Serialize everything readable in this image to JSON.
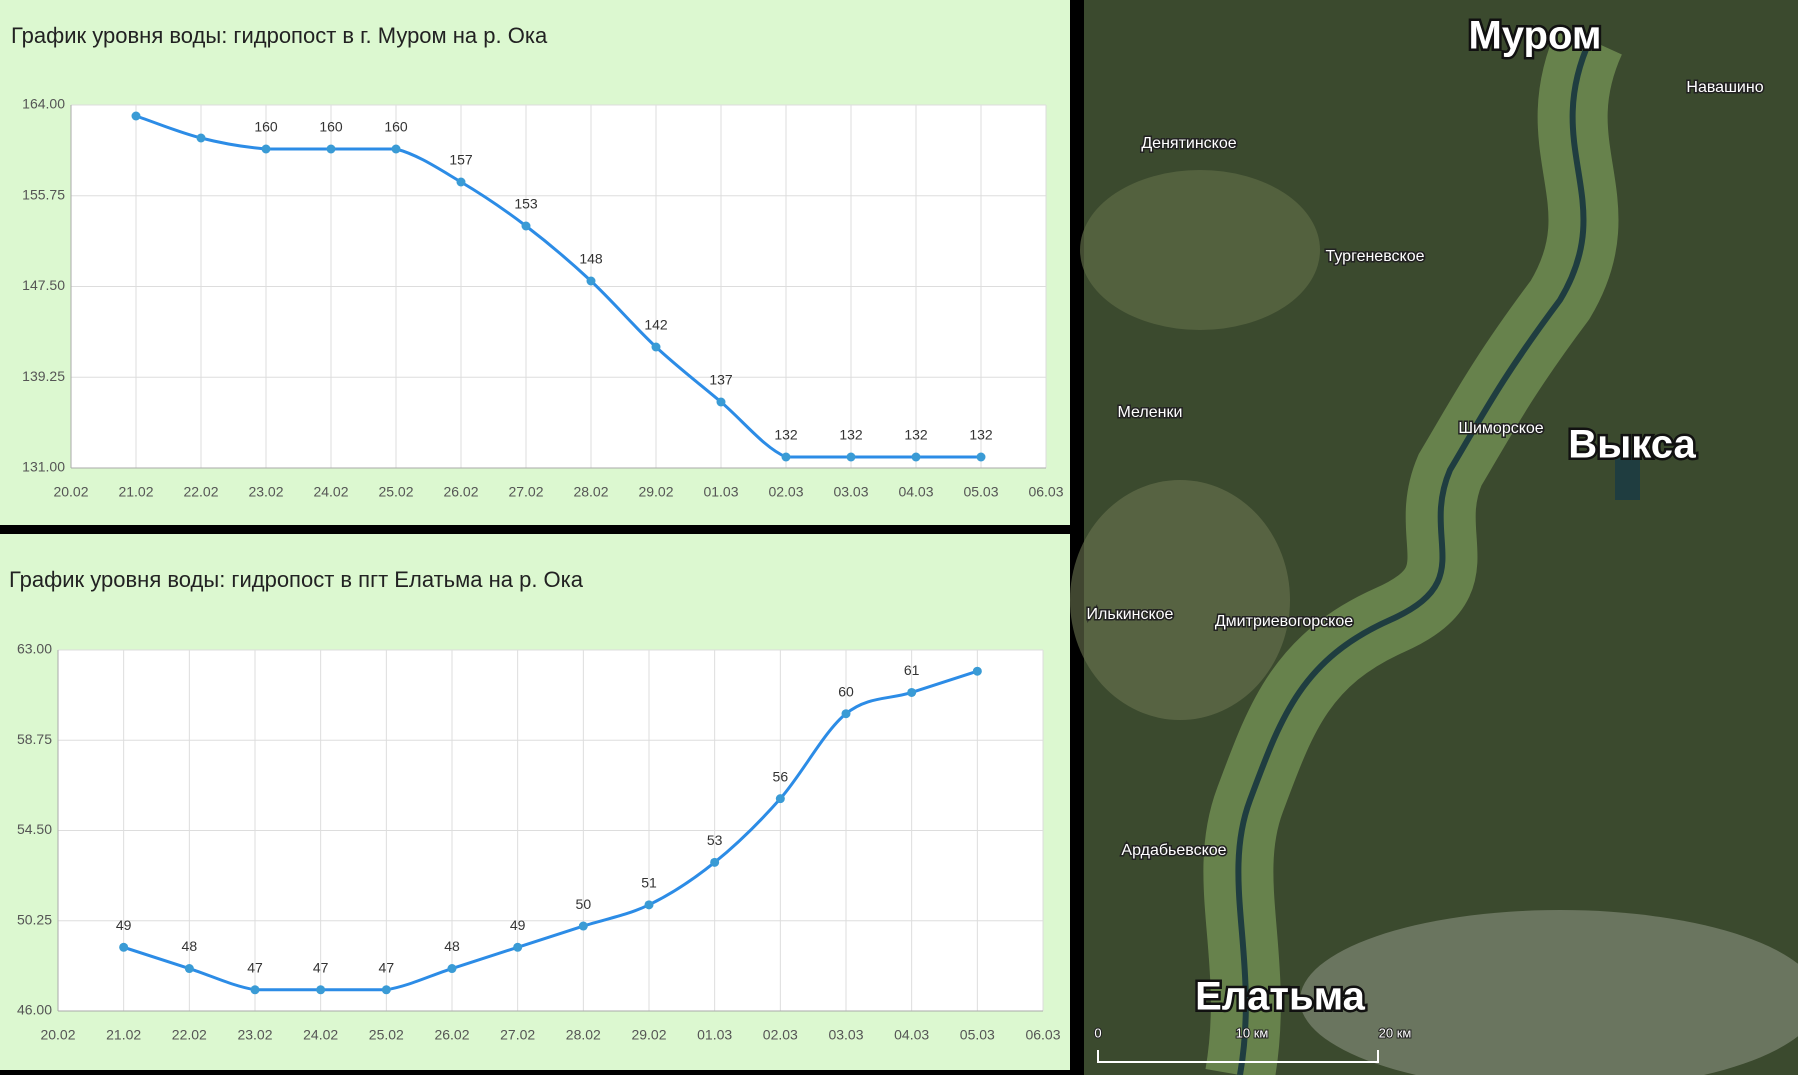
{
  "chart_data": [
    {
      "type": "line",
      "title": "График уровня воды: гидропост в г. Муром на р. Ока",
      "categories": [
        "20.02",
        "21.02",
        "22.02",
        "23.02",
        "24.02",
        "25.02",
        "26.02",
        "27.02",
        "28.02",
        "29.02",
        "01.03",
        "02.03",
        "03.03",
        "04.03",
        "05.03",
        "06.03"
      ],
      "values": [
        null,
        163,
        161,
        160,
        160,
        160,
        157,
        153,
        148,
        142,
        137,
        132,
        132,
        132,
        132,
        null
      ],
      "value_labels": [
        null,
        null,
        null,
        "160",
        "160",
        "160",
        "157",
        "153",
        "148",
        "142",
        "137",
        "132",
        "132",
        "132",
        "132",
        null
      ],
      "color": "#2c8ce6",
      "ylim": [
        131,
        164
      ],
      "yticks": [
        {
          "value": 131,
          "label": "131.00"
        },
        {
          "value": 139.25,
          "label": "139.25"
        },
        {
          "value": 147.5,
          "label": "147.50"
        },
        {
          "value": 155.75,
          "label": "155.75"
        },
        {
          "value": 164,
          "label": "164.00"
        }
      ],
      "grid": true
    },
    {
      "type": "line",
      "title": "График уровня воды: гидропост в пгт Елатьма на р. Ока",
      "categories": [
        "20.02",
        "21.02",
        "22.02",
        "23.02",
        "24.02",
        "25.02",
        "26.02",
        "27.02",
        "28.02",
        "29.02",
        "01.03",
        "02.03",
        "03.03",
        "04.03",
        "05.03",
        "06.03"
      ],
      "values": [
        null,
        49,
        48,
        47,
        47,
        47,
        48,
        49,
        50,
        51,
        53,
        56,
        60,
        61,
        62,
        null
      ],
      "value_labels": [
        null,
        "49",
        "48",
        "47",
        "47",
        "47",
        "48",
        "49",
        "50",
        "51",
        "53",
        "56",
        "60",
        "61",
        null,
        null
      ],
      "color": "#2c8ce6",
      "ylim": [
        46,
        63
      ],
      "yticks": [
        {
          "value": 46,
          "label": "46.00"
        },
        {
          "value": 50.25,
          "label": "50.25"
        },
        {
          "value": 54.5,
          "label": "54.50"
        },
        {
          "value": 58.75,
          "label": "58.75"
        },
        {
          "value": 63,
          "label": "63.00"
        }
      ],
      "grid": true
    }
  ],
  "map": {
    "labels": [
      "Муром",
      "Навашино",
      "Денятинское",
      "Тургеневское",
      "Меленки",
      "Шиморское",
      "Выкса",
      "Илькинское",
      "Дмитриевогорское",
      "Ардабьевское",
      "Елатьма"
    ],
    "scale": [
      "0",
      "10 км",
      "20 км"
    ]
  }
}
